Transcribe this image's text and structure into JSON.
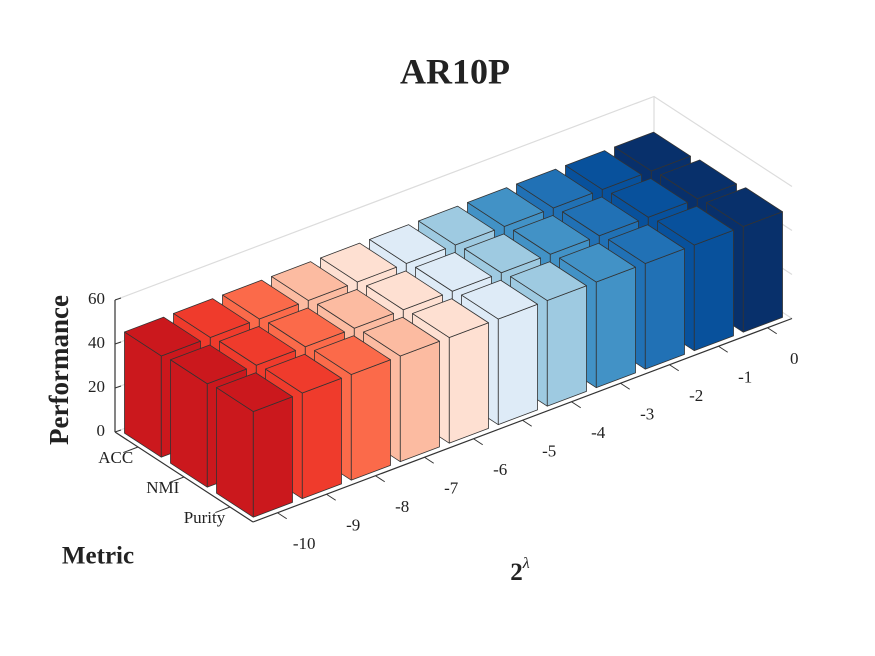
{
  "chart_data": {
    "type": "bar3d",
    "title": "AR10P",
    "x_label_base": "2",
    "x_label_exponent": "λ",
    "y_label": "Metric",
    "z_label": "Performance",
    "categories": [
      "-10",
      "-9",
      "-8",
      "-7",
      "-6",
      "-5",
      "-4",
      "-3",
      "-2",
      "-1",
      "0"
    ],
    "colors": [
      "#cb181d",
      "#ef3b2c",
      "#fb6a4a",
      "#fcbba1",
      "#fee0d2",
      "#deebf7",
      "#9ecae1",
      "#4292c6",
      "#2171b5",
      "#08519c",
      "#08306b"
    ],
    "series": [
      {
        "name": "ACC",
        "values": [
          46,
          46,
          46,
          46,
          46,
          46,
          46,
          46,
          46,
          46,
          46
        ]
      },
      {
        "name": "NMI",
        "values": [
          47,
          47,
          47,
          47,
          47,
          47,
          47,
          47,
          47,
          47,
          47
        ]
      },
      {
        "name": "Purity",
        "values": [
          48,
          48,
          48,
          48,
          48,
          48,
          48,
          48,
          48,
          48,
          48
        ]
      }
    ],
    "zlim": [
      0,
      60
    ],
    "zticks": [
      0,
      20,
      40,
      60
    ],
    "grid": true
  }
}
